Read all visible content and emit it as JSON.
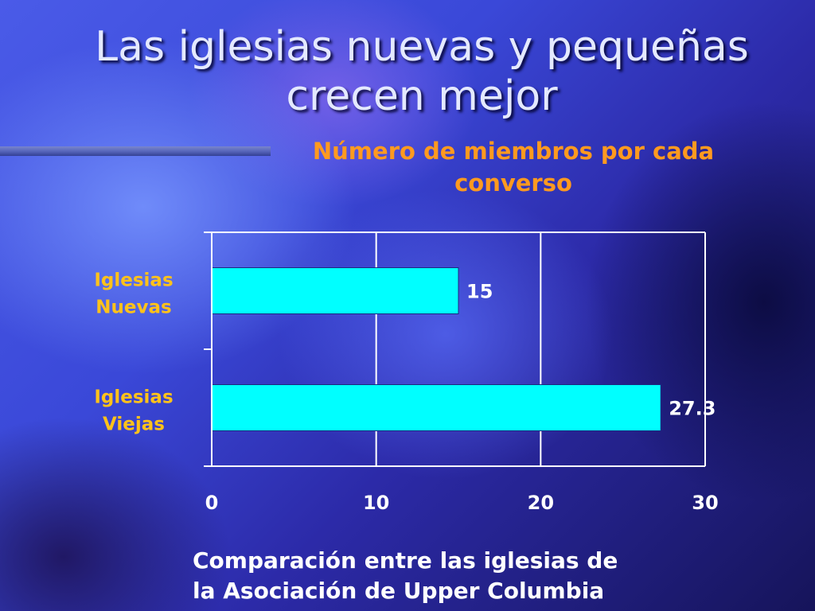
{
  "slide": {
    "title_line1": "Las iglesias nuevas y pequeñas",
    "title_line2": "crecen mejor",
    "footer_line1": "Comparación entre las iglesias de",
    "footer_line2": "la Asociación de Upper Columbia"
  },
  "chart_data": {
    "type": "bar",
    "orientation": "horizontal",
    "title_line1": "Número de miembros por cada",
    "title_line2": "converso",
    "categories": [
      {
        "line1": "Iglesias",
        "line2": "Nuevas"
      },
      {
        "line1": "Iglesias",
        "line2": "Viejas"
      }
    ],
    "values": [
      15,
      27.3
    ],
    "value_labels": [
      "15",
      "27.3"
    ],
    "xlim": [
      0,
      30
    ],
    "xticks": [
      0,
      10,
      20,
      30
    ],
    "xtick_labels": [
      "0",
      "10",
      "20",
      "30"
    ],
    "grid": true,
    "bar_color": "#00ffff",
    "colors": {
      "title": "#e4e9ff",
      "chart_title": "#ff9a1f",
      "category_label": "#ffc21a",
      "tick_label": "#ffffff",
      "footer": "#ffffff"
    }
  }
}
